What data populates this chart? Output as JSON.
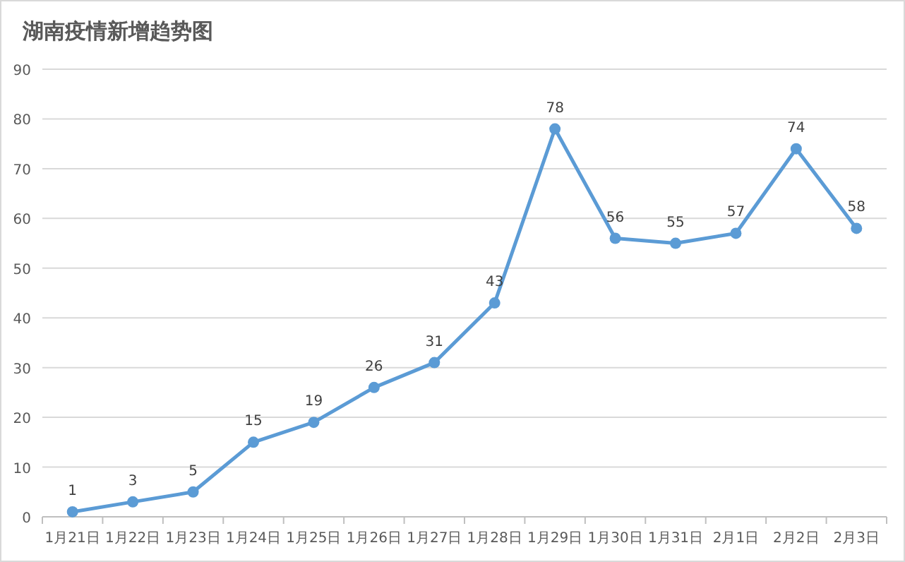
{
  "chart_data": {
    "type": "line",
    "title": "湖南疫情新增趋势图",
    "categories": [
      "1月21日",
      "1月22日",
      "1月23日",
      "1月24日",
      "1月25日",
      "1月26日",
      "1月27日",
      "1月28日",
      "1月29日",
      "1月30日",
      "1月31日",
      "2月1日",
      "2月2日",
      "2月3日"
    ],
    "series": [
      {
        "color": "#5b9bd5",
        "values": [
          1,
          3,
          5,
          15,
          19,
          26,
          31,
          43,
          78,
          56,
          55,
          57,
          74,
          58
        ]
      }
    ],
    "ylim": [
      0,
      90
    ],
    "yticks": [
      0,
      10,
      20,
      30,
      40,
      50,
      60,
      70,
      80,
      90
    ],
    "grid": "y",
    "marker": "circle",
    "data_labels": true
  }
}
